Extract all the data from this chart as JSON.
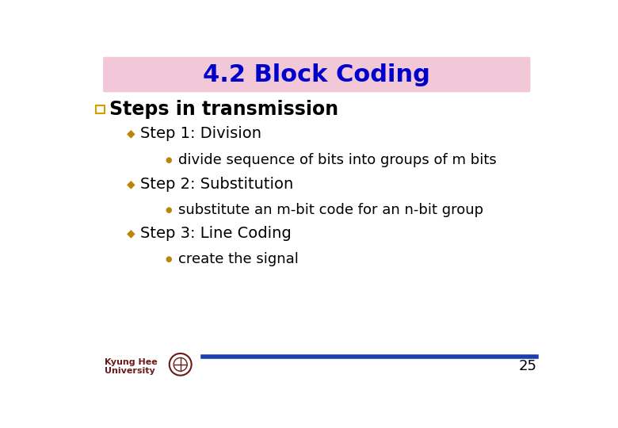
{
  "title": "4.2 Block Coding",
  "title_color": "#0000CC",
  "title_bg_color": "#F2C8D8",
  "bg_color": "#FFFFFF",
  "bullet1_color": "#B8860B",
  "bullet2_color": "#B8860B",
  "section_title": "Steps in transmission",
  "section_bullet_color": "#D4A000",
  "items": [
    {
      "level": 1,
      "text": "Step 1: Division"
    },
    {
      "level": 2,
      "text": "divide sequence of bits into groups of m bits"
    },
    {
      "level": 1,
      "text": "Step 2: Substitution"
    },
    {
      "level": 2,
      "text": "substitute an m-bit code for an n-bit group"
    },
    {
      "level": 1,
      "text": "Step 3: Line Coding"
    },
    {
      "level": 2,
      "text": "create the signal"
    }
  ],
  "footer_text_line1": "Kyung Hee",
  "footer_text_line2": "University",
  "footer_line_color": "#1A3DB0",
  "page_number": "25"
}
